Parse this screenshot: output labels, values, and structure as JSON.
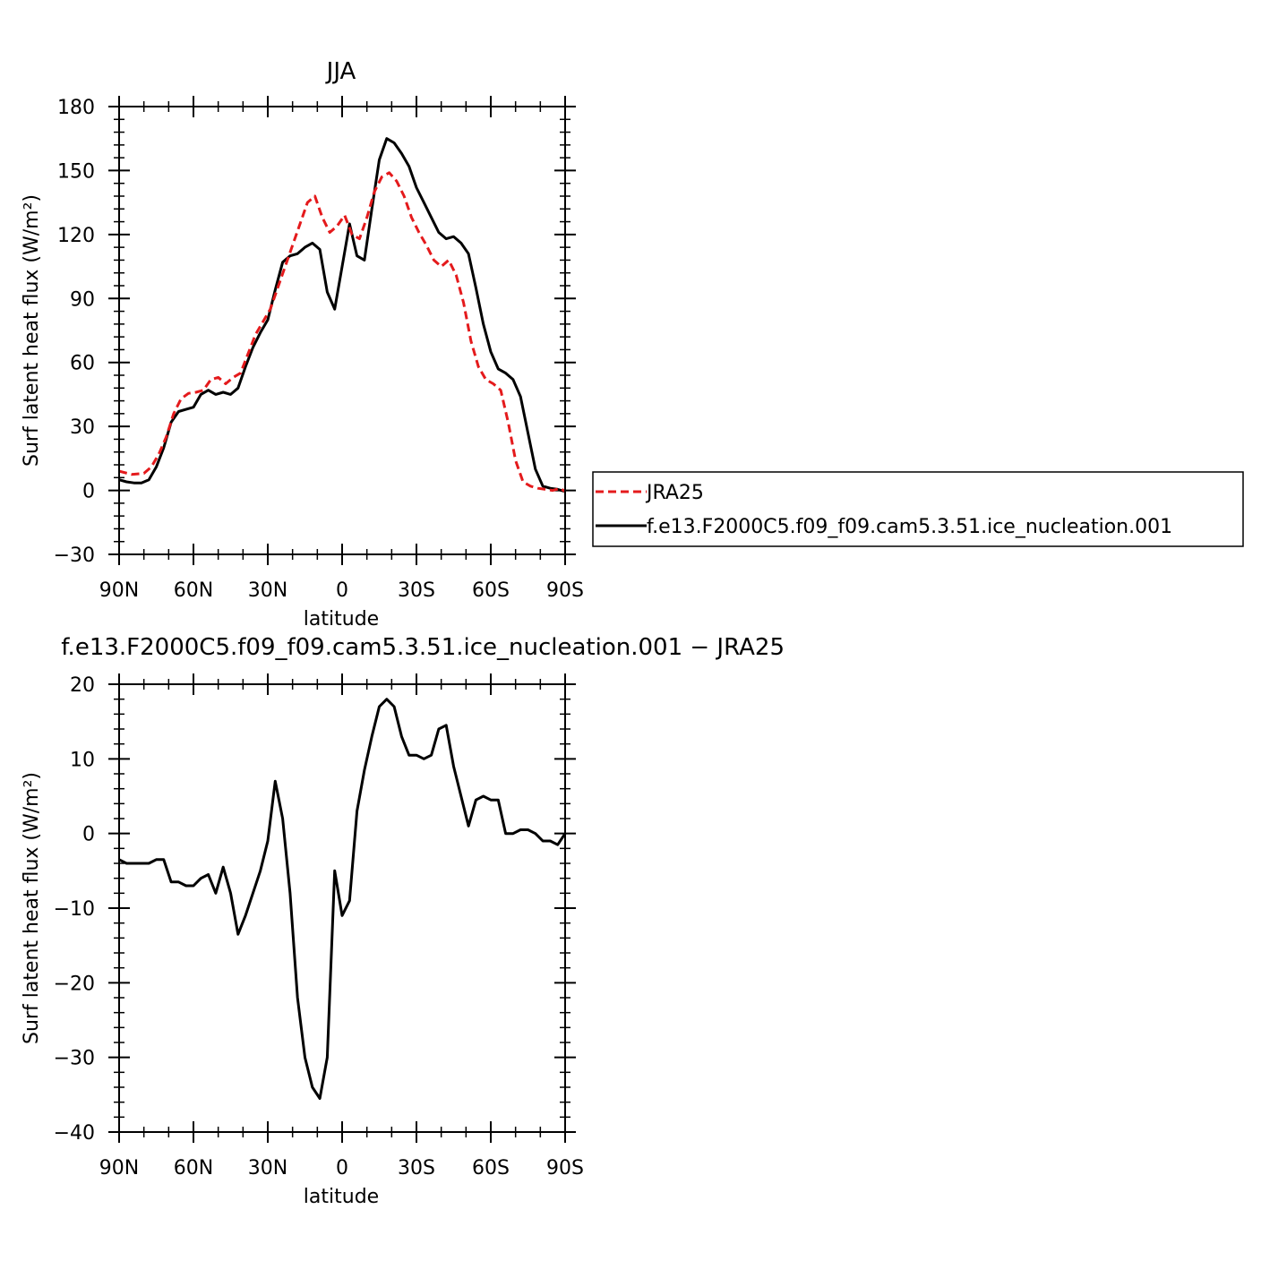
{
  "chart_data": [
    {
      "type": "line",
      "title": "JJA",
      "xlabel": "latitude",
      "ylabel": "Surf latent heat flux (W/m²)",
      "xlim": [
        -90,
        90
      ],
      "ylim": [
        -30,
        180
      ],
      "x_ticks": [
        -90,
        -60,
        -30,
        0,
        30,
        60,
        90
      ],
      "x_tick_labels": [
        "90N",
        "60N",
        "30N",
        "0",
        "30S",
        "60S",
        "90S"
      ],
      "y_ticks": [
        -30,
        0,
        30,
        60,
        90,
        120,
        150,
        180
      ],
      "y_tick_labels": [
        "−30",
        "0",
        "30",
        "60",
        "90",
        "120",
        "150",
        "180"
      ],
      "grid": false,
      "legend_placement": "right, outside plot",
      "series": [
        {
          "name": "JRA25",
          "color": "#e41a1c",
          "dash": "dashed",
          "x": [
            -90,
            -85,
            -80,
            -77,
            -74,
            -71,
            -68,
            -65,
            -62,
            -59,
            -56,
            -53,
            -50,
            -47,
            -44,
            -41,
            -38,
            -35,
            -32,
            -29,
            -26,
            -23,
            -20,
            -17,
            -14,
            -11,
            -8,
            -5,
            -2,
            1,
            4,
            7,
            10,
            13,
            16,
            19,
            22,
            25,
            28,
            31,
            34,
            37,
            40,
            43,
            46,
            49,
            52,
            55,
            58,
            61,
            64,
            67,
            70,
            73,
            76,
            79,
            82,
            85,
            88,
            90
          ],
          "values": [
            9,
            7.5,
            8,
            11,
            17,
            25,
            36,
            43,
            45.5,
            46,
            47,
            52,
            53,
            50,
            53,
            55,
            64,
            73,
            79,
            85,
            95,
            105,
            115,
            125,
            135,
            138,
            128,
            121,
            124,
            129,
            120,
            118,
            128,
            140,
            147,
            149,
            145,
            138,
            128,
            121,
            115,
            108,
            105,
            108,
            101,
            88,
            70,
            58,
            52,
            50,
            47,
            32,
            14,
            4,
            2,
            1,
            0.5,
            0,
            1,
            -0.5
          ]
        },
        {
          "name": "f.e13.F2000C5.f09_f09.cam5.3.51.ice_nucleation.001",
          "color": "#000000",
          "dash": "solid",
          "x": [
            -90,
            -87,
            -84,
            -81,
            -78,
            -75,
            -72,
            -69,
            -66,
            -63,
            -60,
            -57,
            -54,
            -51,
            -48,
            -45,
            -42,
            -39,
            -36,
            -33,
            -30,
            -27,
            -24,
            -21,
            -18,
            -15,
            -12,
            -9,
            -6,
            -3,
            0,
            3,
            6,
            9,
            12,
            15,
            18,
            21,
            24,
            27,
            30,
            33,
            36,
            39,
            42,
            45,
            48,
            51,
            54,
            57,
            60,
            63,
            66,
            69,
            72,
            75,
            78,
            81,
            84,
            87,
            90
          ],
          "values": [
            5,
            4,
            3.5,
            3.5,
            5,
            11,
            20,
            32,
            37,
            38,
            39,
            45,
            47,
            45,
            46,
            45,
            48,
            58,
            67,
            74,
            80,
            94,
            107,
            110,
            111,
            114,
            116,
            113,
            93,
            85,
            105,
            125,
            110,
            108,
            132,
            155,
            165,
            163,
            158,
            152,
            142,
            135,
            128,
            121,
            118,
            119,
            116,
            111,
            95,
            78,
            65,
            57,
            55,
            52,
            44,
            27,
            10,
            2,
            1,
            0.5,
            -0.5
          ]
        }
      ]
    },
    {
      "type": "line",
      "title": "f.e13.F2000C5.f09_f09.cam5.3.51.ice_nucleation.001 − JRA25",
      "xlabel": "latitude",
      "ylabel": "Surf latent heat flux (W/m²)",
      "xlim": [
        -90,
        90
      ],
      "ylim": [
        -40,
        20
      ],
      "x_ticks": [
        -90,
        -60,
        -30,
        0,
        30,
        60,
        90
      ],
      "x_tick_labels": [
        "90N",
        "60N",
        "30N",
        "0",
        "30S",
        "60S",
        "90S"
      ],
      "y_ticks": [
        -40,
        -30,
        -20,
        -10,
        0,
        10,
        20
      ],
      "y_tick_labels": [
        "−40",
        "−30",
        "−20",
        "−10",
        "0",
        "10",
        "20"
      ],
      "grid": false,
      "series": [
        {
          "color": "#000000",
          "dash": "solid",
          "x": [
            -90,
            -87,
            -84,
            -81,
            -78,
            -75,
            -72,
            -69,
            -66,
            -63,
            -60,
            -57,
            -54,
            -51,
            -48,
            -45,
            -42,
            -39,
            -36,
            -33,
            -30,
            -27,
            -24,
            -21,
            -18,
            -15,
            -12,
            -9,
            -6,
            -3,
            0,
            3,
            6,
            9,
            12,
            15,
            18,
            21,
            24,
            27,
            30,
            33,
            36,
            39,
            42,
            45,
            48,
            51,
            54,
            57,
            60,
            63,
            66,
            69,
            72,
            75,
            78,
            81,
            84,
            87,
            90
          ],
          "values": [
            -3.5,
            -4,
            -4,
            -4,
            -4,
            -3.5,
            -3.5,
            -6.5,
            -6.5,
            -7,
            -7,
            -6,
            -5.5,
            -8,
            -4.5,
            -8,
            -13.5,
            -11,
            -8,
            -5,
            -1,
            7,
            2,
            -8,
            -22,
            -30,
            -34,
            -35.5,
            -30,
            -5,
            -11,
            -9,
            3,
            8.5,
            13,
            17,
            18,
            17,
            13,
            10.5,
            10.5,
            10,
            10.5,
            14,
            14.5,
            9,
            5,
            1,
            4.5,
            5,
            4.5,
            4.5,
            0,
            0,
            0.5,
            0.5,
            0,
            -1,
            -1,
            -1.5,
            0
          ]
        }
      ]
    }
  ]
}
